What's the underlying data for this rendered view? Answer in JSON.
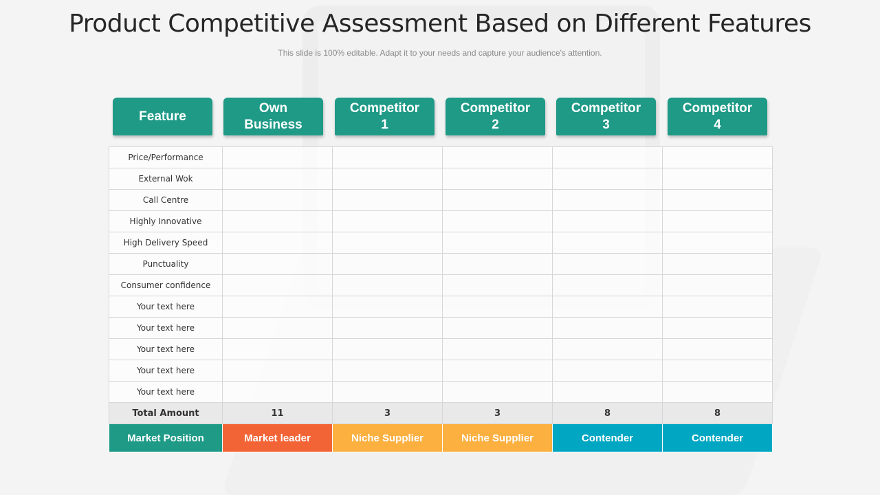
{
  "title": "Product Competitive Assessment Based on Different Features",
  "subtitle": "This slide is 100% editable. Adapt it to your needs and capture your audience's attention.",
  "headers": [
    {
      "line1": "Feature",
      "line2": ""
    },
    {
      "line1": "Own",
      "line2": "Business"
    },
    {
      "line1": "Competitor",
      "line2": "1"
    },
    {
      "line1": "Competitor",
      "line2": "2"
    },
    {
      "line1": "Competitor",
      "line2": "3"
    },
    {
      "line1": "Competitor",
      "line2": "4"
    }
  ],
  "features": [
    "Price/Performance",
    "External Wok",
    "Call Centre",
    "Highly Innovative",
    "High Delivery Speed",
    "Punctuality",
    "Consumer confidence",
    "Your text here",
    "Your text here",
    "Your text here",
    "Your text here",
    "Your text here"
  ],
  "total": {
    "label": "Total Amount",
    "values": [
      "11",
      "3",
      "3",
      "8",
      "8"
    ]
  },
  "market_position": {
    "label": "Market Position",
    "values": [
      "Market leader",
      "Niche Supplier",
      "Niche Supplier",
      "Contender",
      "Contender"
    ]
  },
  "colors": {
    "header": "#1f9a87",
    "market_leader": "#f26436",
    "niche_supplier": "#fbb040",
    "contender": "#00a6c2"
  }
}
